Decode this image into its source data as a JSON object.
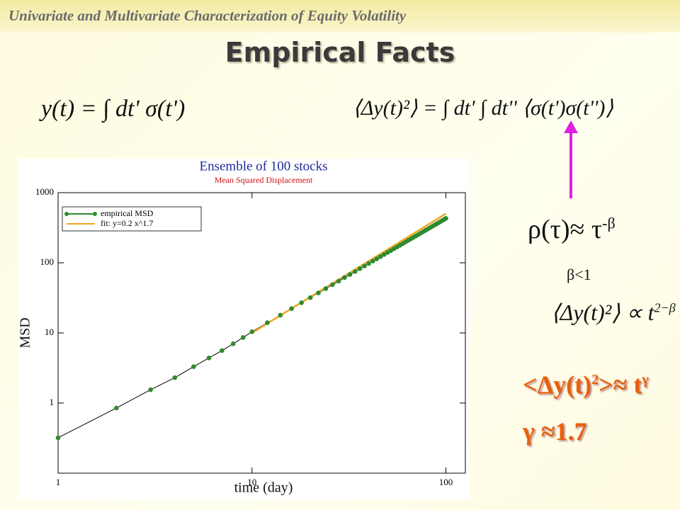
{
  "header": {
    "title": "Univariate and Multivariate Characterization of Equity Volatility"
  },
  "slide_title": "Empirical Facts",
  "formulas": {
    "y": "y(t) = ∫ dt' σ(t')",
    "msd": "⟨Δy(t)²⟩ = ∫ dt' ∫ dt'' ⟨σ(t')σ(t'')⟩"
  },
  "notes": {
    "rho": {
      "base": "ρ(τ)≈ τ",
      "sup": "-β"
    },
    "beta": "β<1",
    "scaling": {
      "base": "⟨Δy(t)²⟩ ∝ t",
      "sup": "2−β"
    },
    "msd_law": {
      "base": "<Δy(t)",
      "sup1": "2",
      "rest": ">≈ t",
      "sup2": "γ"
    },
    "gamma": "γ ≈1.7"
  },
  "chart_data": {
    "type": "line",
    "title": "Ensemble of 100 stocks",
    "subtitle": "Mean Squared Displacement",
    "xlabel": "time (day)",
    "ylabel": "MSD",
    "xscale": "log",
    "yscale": "log",
    "xlim": [
      1,
      126
    ],
    "ylim": [
      0.1,
      1000
    ],
    "xticks": [
      1,
      10,
      100
    ],
    "yticks": [
      1,
      10,
      100,
      1000
    ],
    "legend": "upper left",
    "series": [
      {
        "name": "empirical MSD",
        "color": "#2e8b2e",
        "line_color": "#000000",
        "x": [
          1,
          2,
          3,
          4,
          5,
          6,
          7,
          8,
          9,
          10,
          12,
          14,
          16,
          18,
          20,
          22,
          24,
          26,
          28,
          30,
          32,
          34,
          36,
          38,
          40,
          42,
          44,
          46,
          48,
          50,
          52,
          54,
          56,
          58,
          60,
          62,
          64,
          66,
          68,
          70,
          72,
          74,
          76,
          78,
          80,
          82,
          84,
          86,
          88,
          90,
          92,
          94,
          96,
          98,
          100
        ],
        "values": [
          0.32,
          0.85,
          1.55,
          2.3,
          3.3,
          4.4,
          5.6,
          7,
          8.6,
          10.4,
          14,
          17.9,
          22.2,
          26.9,
          31.9,
          37.2,
          42.8,
          48.7,
          54.9,
          61.4,
          68.1,
          75.1,
          82.4,
          89.9,
          97.7,
          105.7,
          114,
          122.5,
          131.2,
          140.1,
          149.3,
          158.6,
          168.3,
          178.1,
          188.1,
          198.4,
          208.8,
          219.4,
          230.3,
          241.3,
          252.6,
          264.1,
          275.7,
          287.5,
          299.5,
          311.7,
          324.1,
          336.6,
          349.4,
          362.3,
          375.4,
          388.6,
          402.1,
          415.8,
          429.5
        ]
      },
      {
        "name": "fit: y=0.2 x^1.7",
        "color": "#f0a81e",
        "x": [
          10,
          100
        ],
        "values": [
          10.02,
          502.4
        ]
      }
    ]
  }
}
